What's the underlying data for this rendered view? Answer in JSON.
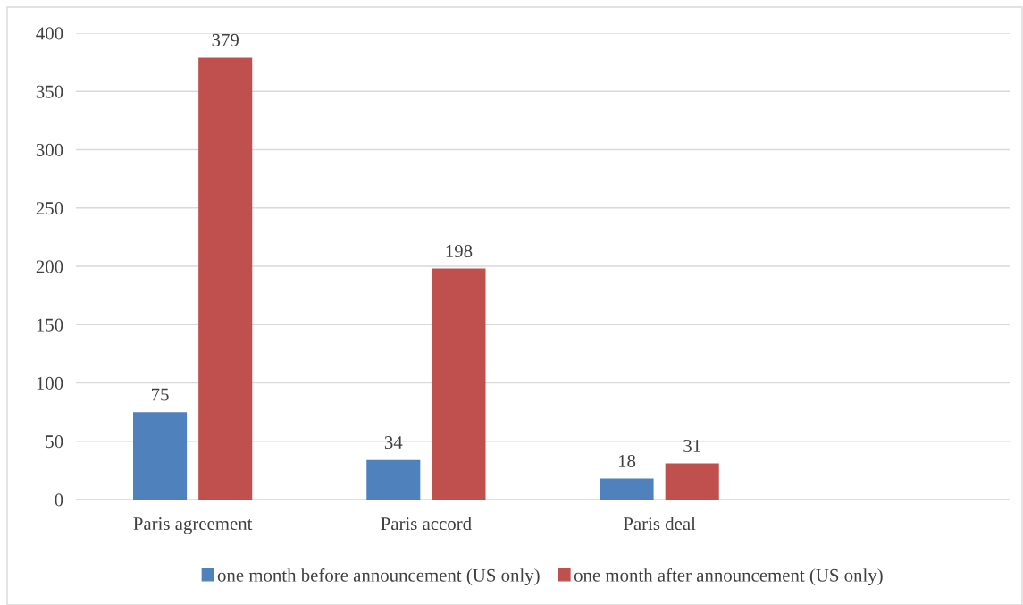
{
  "chart_data": {
    "type": "bar",
    "categories": [
      "Paris agreement",
      "Paris accord",
      "Paris deal",
      null
    ],
    "series": [
      {
        "name": "one month before announcement (US only)",
        "color": "#4f81bd",
        "values": [
          75,
          34,
          18,
          null
        ]
      },
      {
        "name": "one month after announcement (US only)",
        "color": "#c0504d",
        "values": [
          379,
          198,
          31,
          null
        ]
      }
    ],
    "ylim": [
      0,
      400
    ],
    "yticks": [
      0,
      50,
      100,
      150,
      200,
      250,
      300,
      350,
      400
    ],
    "grid": "y",
    "legend": "bottom",
    "data_labels": true
  }
}
